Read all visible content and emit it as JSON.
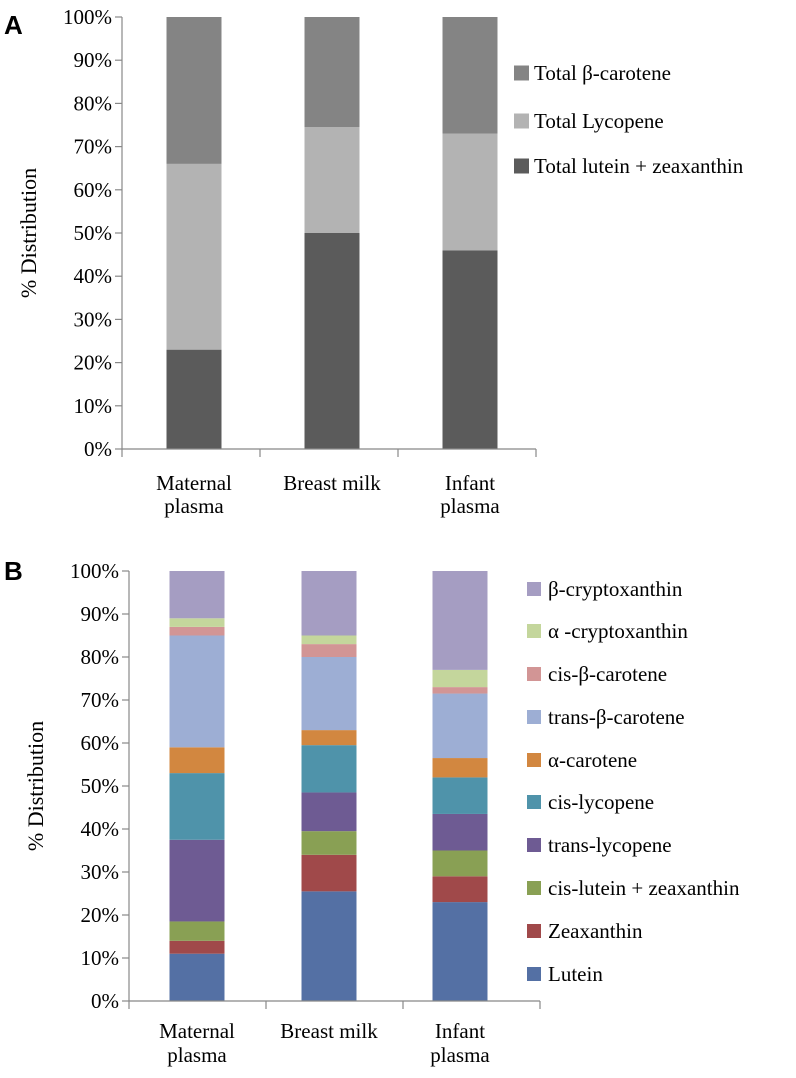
{
  "chart_data": [
    {
      "panel": "A",
      "type": "bar",
      "stacked": true,
      "categories": [
        [
          "Maternal",
          "plasma"
        ],
        [
          "Breast milk"
        ],
        [
          "Infant",
          "plasma"
        ]
      ],
      "ylabel": "% Distribution",
      "ylim": [
        0,
        100
      ],
      "yticks": [
        "0%",
        "10%",
        "20%",
        "30%",
        "40%",
        "50%",
        "60%",
        "70%",
        "80%",
        "90%",
        "100%"
      ],
      "grid": false,
      "legend_position": "right",
      "series": [
        {
          "name": "Total lutein + zeaxanthin",
          "color": "#5b5b5b",
          "values": [
            23,
            50,
            46
          ]
        },
        {
          "name": "Total Lycopene",
          "color": "#b3b3b3",
          "values": [
            43,
            24.5,
            27
          ]
        },
        {
          "name": "Total β-carotene",
          "color": "#848484",
          "values": [
            34,
            25.5,
            27
          ]
        }
      ]
    },
    {
      "panel": "B",
      "type": "bar",
      "stacked": true,
      "categories": [
        [
          "Maternal",
          "plasma"
        ],
        [
          "Breast milk"
        ],
        [
          "Infant",
          "plasma"
        ]
      ],
      "ylabel": "% Distribution",
      "ylim": [
        0,
        100
      ],
      "yticks": [
        "0%",
        "10%",
        "20%",
        "30%",
        "40%",
        "50%",
        "60%",
        "70%",
        "80%",
        "90%",
        "100%"
      ],
      "grid": false,
      "legend_position": "right",
      "series": [
        {
          "name": "Lutein",
          "color": "#5470a4",
          "values": [
            11,
            25.5,
            23
          ]
        },
        {
          "name": "Zeaxanthin",
          "color": "#a0494a",
          "values": [
            3,
            8.5,
            6
          ]
        },
        {
          "name": "cis-lutein + zeaxanthin",
          "color": "#89a054",
          "values": [
            4.5,
            5.5,
            6
          ]
        },
        {
          "name": "trans-lycopene",
          "color": "#6e5b93",
          "values": [
            19,
            9,
            8.5
          ]
        },
        {
          "name": "cis-lycopene",
          "color": "#4f93aa",
          "values": [
            15.5,
            11,
            8.5
          ]
        },
        {
          "name": "α-carotene",
          "color": "#d28740",
          "values": [
            6,
            3.5,
            4.5
          ]
        },
        {
          "name": "trans-β-carotene",
          "color": "#9daed4",
          "values": [
            26,
            17,
            15
          ]
        },
        {
          "name": "cis-β-carotene",
          "color": "#d29595",
          "values": [
            2,
            3,
            1.5
          ]
        },
        {
          "name": "α -cryptoxanthin",
          "color": "#c4d69c",
          "values": [
            2,
            2,
            4
          ]
        },
        {
          "name": "β-cryptoxanthin",
          "color": "#a59dc2",
          "values": [
            11,
            15,
            23
          ]
        }
      ]
    }
  ]
}
